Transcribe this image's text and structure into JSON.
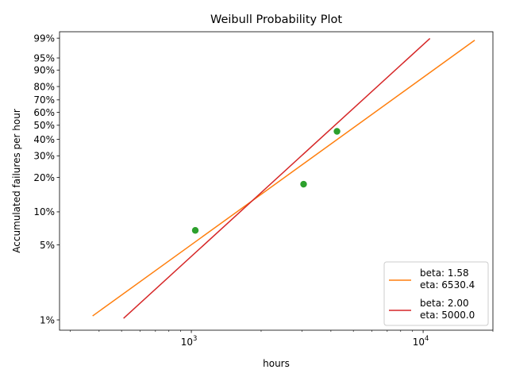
{
  "chart_data": {
    "type": "line",
    "title": "Weibull Probability Plot",
    "xlabel": "hours",
    "ylabel": "Accumulated failures per hour",
    "x_scale": "log",
    "y_scale": "weibull",
    "xlim": [
      270,
      20000
    ],
    "ylim": [
      0.008,
      0.995
    ],
    "grid": false,
    "legend_position": "lower-right",
    "x_major_ticks": [
      {
        "value": 1000,
        "base": "10",
        "exp": "3"
      },
      {
        "value": 10000,
        "base": "10",
        "exp": "4"
      }
    ],
    "y_ticks": [
      {
        "value": 0.01,
        "label": "1%"
      },
      {
        "value": 0.05,
        "label": "5%"
      },
      {
        "value": 0.1,
        "label": "10%"
      },
      {
        "value": 0.2,
        "label": "20%"
      },
      {
        "value": 0.3,
        "label": "30%"
      },
      {
        "value": 0.4,
        "label": "40%"
      },
      {
        "value": 0.5,
        "label": "50%"
      },
      {
        "value": 0.6,
        "label": "60%"
      },
      {
        "value": 0.7,
        "label": "70%"
      },
      {
        "value": 0.8,
        "label": "80%"
      },
      {
        "value": 0.9,
        "label": "90%"
      },
      {
        "value": 0.95,
        "label": "95%"
      },
      {
        "value": 0.99,
        "label": "99%"
      }
    ],
    "points": {
      "color": "#2ca02c",
      "x": [
        1040,
        3050,
        4250
      ],
      "y": [
        0.068,
        0.175,
        0.455
      ]
    },
    "series": [
      {
        "legend_lines": [
          "beta: 1.58",
          "eta: 6530.4"
        ],
        "beta": 1.58,
        "eta": 6530.4,
        "x_range": [
          375,
          16700
        ],
        "color": "#ff7f0e"
      },
      {
        "legend_lines": [
          "beta: 2.00",
          "eta: 5000.0"
        ],
        "beta": 2.0,
        "eta": 5000.0,
        "x_range": [
          510,
          10700
        ],
        "color": "#d62728"
      }
    ]
  }
}
